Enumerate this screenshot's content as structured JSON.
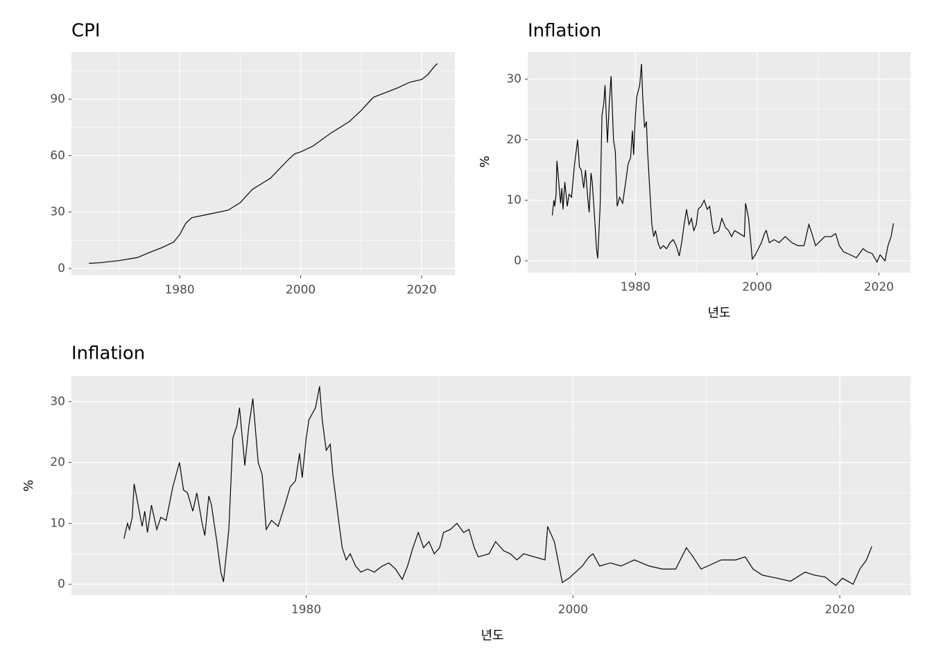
{
  "chart_data": [
    {
      "type": "line",
      "title": "CPI",
      "color": "#000000",
      "grid": true,
      "x": [
        1965.0,
        1967.0,
        1970.0,
        1973.0,
        1975.0,
        1977.0,
        1979.0,
        1980.0,
        1981.0,
        1982.0,
        1985.0,
        1988.0,
        1990.0,
        1992.0,
        1995.0,
        1998.0,
        1999.0,
        2000.0,
        2002.0,
        2005.0,
        2008.0,
        2010.0,
        2012.0,
        2014.0,
        2016.0,
        2018.0,
        2020.0,
        2021.0,
        2022.0,
        2022.6
      ],
      "values": [
        2.7,
        3.1,
        4.2,
        5.8,
        8.5,
        11,
        14,
        18,
        24,
        27,
        29,
        31,
        35,
        42,
        48,
        58,
        61,
        62,
        65,
        72,
        78,
        84,
        91,
        93.5,
        96,
        99,
        100.5,
        103,
        107,
        109
      ],
      "xlim": [
        1962.1,
        2025.5
      ],
      "ylim": [
        -3.7,
        115.1
      ],
      "xticks": [
        1980,
        2000,
        2020
      ],
      "yticks": [
        0,
        30,
        60,
        90
      ]
    },
    {
      "type": "line",
      "title": "Inflation",
      "ylabel": "%",
      "xlabel": "년도",
      "color": "#000000",
      "grid": true,
      "x": [
        1966.34,
        1966.6,
        1966.75,
        1966.96,
        1967.1,
        1967.4,
        1967.7,
        1967.9,
        1968.1,
        1968.4,
        1968.8,
        1969.1,
        1969.5,
        1970.0,
        1970.5,
        1970.8,
        1971.1,
        1971.5,
        1971.8,
        1972.2,
        1972.4,
        1972.7,
        1972.9,
        1973.3,
        1973.6,
        1973.8,
        1974.2,
        1974.5,
        1974.8,
        1975.0,
        1975.4,
        1975.7,
        1976.0,
        1976.4,
        1976.7,
        1977.0,
        1977.4,
        1977.9,
        1978.4,
        1978.8,
        1979.2,
        1979.5,
        1979.7,
        1980.0,
        1980.2,
        1980.7,
        1981.0,
        1981.2,
        1981.5,
        1981.8,
        1982.0,
        1982.4,
        1982.7,
        1983.0,
        1983.3,
        1983.7,
        1984.1,
        1984.6,
        1985.1,
        1985.7,
        1986.2,
        1986.7,
        1987.2,
        1987.6,
        1988.0,
        1988.4,
        1988.8,
        1989.2,
        1989.6,
        1990.0,
        1990.3,
        1990.8,
        1991.3,
        1991.8,
        1992.2,
        1992.6,
        1992.9,
        1993.7,
        1994.2,
        1994.8,
        1995.3,
        1995.8,
        1996.3,
        1997.1,
        1997.9,
        1998.1,
        1998.6,
        1998.96,
        1999.2,
        1999.7,
        2000.2,
        2000.7,
        2001.2,
        2001.5,
        2002.0,
        2002.8,
        2003.6,
        2004.6,
        2005.7,
        2006.7,
        2007.7,
        2008.5,
        2009.0,
        2009.6,
        2010.1,
        2011.1,
        2012.2,
        2012.9,
        2013.5,
        2014.2,
        2015.3,
        2016.3,
        2017.4,
        2018.1,
        2018.9,
        2019.7,
        2020.2,
        2020.6,
        2021.0,
        2021.5,
        2022.0,
        2022.4
      ],
      "values": [
        7.5,
        10,
        9,
        11,
        16.5,
        13,
        9.5,
        12,
        8.5,
        13,
        9,
        11,
        10.5,
        16,
        20,
        15.5,
        15,
        12,
        15,
        10,
        8,
        14.5,
        13,
        7,
        2,
        0.4,
        9,
        24,
        26,
        29,
        19.5,
        26,
        30.5,
        20,
        18,
        9,
        10.5,
        9.5,
        13,
        16,
        17,
        21.5,
        17.5,
        24,
        27,
        29,
        32.5,
        27,
        22,
        23,
        18,
        11,
        6,
        4,
        5,
        3,
        2,
        2.5,
        2,
        3,
        3.5,
        2.5,
        0.8,
        3,
        6,
        8.5,
        6,
        7,
        5,
        6,
        8.5,
        9,
        10,
        8.5,
        9,
        6,
        4.5,
        5,
        7,
        5.5,
        5,
        4,
        5,
        4.5,
        4,
        9.5,
        7,
        3,
        0.3,
        1,
        2,
        3,
        4.5,
        5,
        3,
        3.5,
        3,
        4,
        3,
        2.5,
        2.5,
        6,
        4.5,
        2.5,
        3,
        4,
        4,
        4.5,
        2.5,
        1.5,
        1,
        0.5,
        2,
        1.5,
        1.2,
        -0.2,
        1,
        0.5,
        0,
        2.5,
        4,
        6.2
      ],
      "xlim": [
        1962.3,
        2025.2
      ],
      "ylim": [
        -1.95,
        34.47
      ],
      "xticks": [
        1980,
        2000,
        2020
      ],
      "yticks": [
        0,
        10,
        20,
        30
      ]
    },
    {
      "type": "line",
      "title": "Inflation",
      "ylabel": "%",
      "xlabel": "년도",
      "color": "#000000",
      "grid": true,
      "x": [
        1966.34,
        1966.6,
        1966.75,
        1966.96,
        1967.1,
        1967.4,
        1967.7,
        1967.9,
        1968.1,
        1968.4,
        1968.8,
        1969.1,
        1969.5,
        1970.0,
        1970.5,
        1970.8,
        1971.1,
        1971.5,
        1971.8,
        1972.2,
        1972.4,
        1972.7,
        1972.9,
        1973.3,
        1973.6,
        1973.8,
        1974.2,
        1974.5,
        1974.8,
        1975.0,
        1975.4,
        1975.7,
        1976.0,
        1976.4,
        1976.7,
        1977.0,
        1977.4,
        1977.9,
        1978.4,
        1978.8,
        1979.2,
        1979.5,
        1979.7,
        1980.0,
        1980.2,
        1980.7,
        1981.0,
        1981.2,
        1981.5,
        1981.8,
        1982.0,
        1982.4,
        1982.7,
        1983.0,
        1983.3,
        1983.7,
        1984.1,
        1984.6,
        1985.1,
        1985.7,
        1986.2,
        1986.7,
        1987.2,
        1987.6,
        1988.0,
        1988.4,
        1988.8,
        1989.2,
        1989.6,
        1990.0,
        1990.3,
        1990.8,
        1991.3,
        1991.8,
        1992.2,
        1992.6,
        1992.9,
        1993.7,
        1994.2,
        1994.8,
        1995.3,
        1995.8,
        1996.3,
        1997.1,
        1997.9,
        1998.1,
        1998.6,
        1998.96,
        1999.2,
        1999.7,
        2000.2,
        2000.7,
        2001.2,
        2001.5,
        2002.0,
        2002.8,
        2003.6,
        2004.6,
        2005.7,
        2006.7,
        2007.7,
        2008.5,
        2009.0,
        2009.6,
        2010.1,
        2011.1,
        2012.2,
        2012.9,
        2013.5,
        2014.2,
        2015.3,
        2016.3,
        2017.4,
        2018.1,
        2018.9,
        2019.7,
        2020.2,
        2020.6,
        2021.0,
        2021.5,
        2022.0,
        2022.4
      ],
      "values": [
        7.5,
        10,
        9,
        11,
        16.5,
        13,
        9.5,
        12,
        8.5,
        13,
        9,
        11,
        10.5,
        16,
        20,
        15.5,
        15,
        12,
        15,
        10,
        8,
        14.5,
        13,
        7,
        2,
        0.4,
        9,
        24,
        26,
        29,
        19.5,
        26,
        30.5,
        20,
        18,
        9,
        10.5,
        9.5,
        13,
        16,
        17,
        21.5,
        17.5,
        24,
        27,
        29,
        32.5,
        27,
        22,
        23,
        18,
        11,
        6,
        4,
        5,
        3,
        2,
        2.5,
        2,
        3,
        3.5,
        2.5,
        0.8,
        3,
        6,
        8.5,
        6,
        7,
        5,
        6,
        8.5,
        9,
        10,
        8.5,
        9,
        6,
        4.5,
        5,
        7,
        5.5,
        5,
        4,
        5,
        4.5,
        4,
        9.5,
        7,
        3,
        0.3,
        1,
        2,
        3,
        4.5,
        5,
        3,
        3.5,
        3,
        4,
        3,
        2.5,
        2.5,
        6,
        4.5,
        2.5,
        3,
        4,
        4,
        4.5,
        2.5,
        1.5,
        1,
        0.5,
        2,
        1.5,
        1.2,
        -0.2,
        1,
        0.5,
        0,
        2.5,
        4,
        6.2
      ],
      "xlim": [
        1962.4,
        2025.3
      ],
      "ylim": [
        -1.8,
        34.2
      ],
      "xticks": [
        1980,
        2000,
        2020
      ],
      "yticks": [
        0,
        10,
        20,
        30
      ]
    }
  ]
}
